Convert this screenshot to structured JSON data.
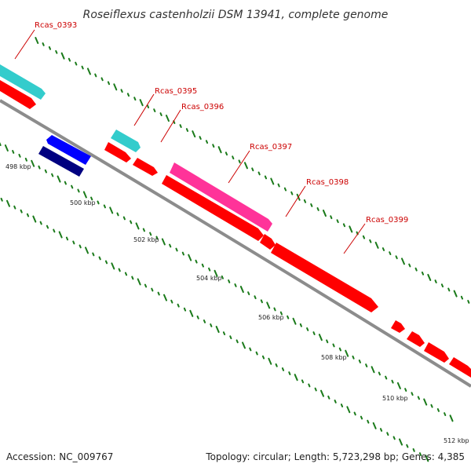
{
  "title": "Roseiflexus castenholzii DSM 13941, complete genome",
  "accession": "Accession: NC_009767",
  "summary": "Topology: circular; Length: 5,723,298 bp; Genes: 4,385",
  "colors": {
    "backbone": "#8c8c8c",
    "ticks": "#1a7a1a",
    "gene_forward": "#ff0000",
    "label": "#cc0000",
    "cyan": "#33cccc",
    "magenta": "#ff3399",
    "blue": "#0000ff",
    "navy": "#000080"
  },
  "kbp_labels": [
    "498 kbp",
    "500 kbp",
    "502 kbp",
    "504 kbp",
    "506 kbp",
    "508 kbp",
    "510 kbp",
    "512 kbp"
  ],
  "gene_labels": [
    "Rcas_0393",
    "Rcas_0395",
    "Rcas_0396",
    "Rcas_0397",
    "Rcas_0398",
    "Rcas_0399"
  ]
}
